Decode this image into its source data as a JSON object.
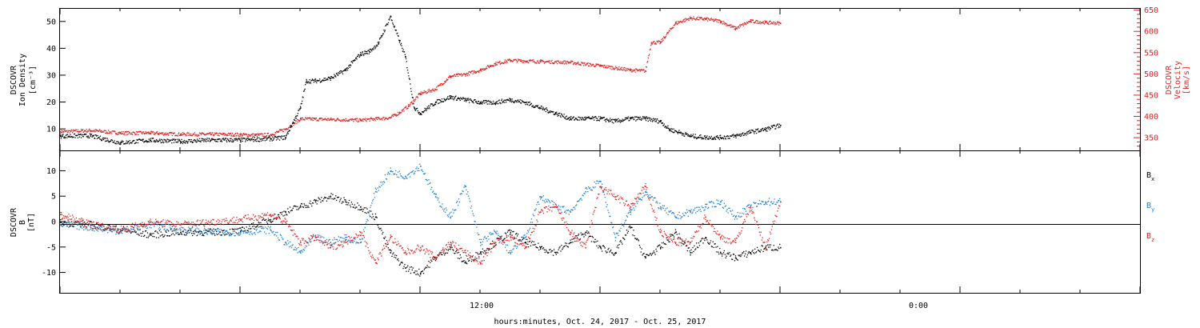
{
  "colors": {
    "black": "#000000",
    "red": "#e02020",
    "blue": "#1a7fd6"
  },
  "xaxis": {
    "title": "hours:minutes, Oct. 24, 2017 - Oct. 25, 2017",
    "range_hours": [
      0,
      36
    ],
    "major_ticks": [
      {
        "h": 12,
        "label": "12:00"
      },
      {
        "h": 24,
        "label": "0:00"
      }
    ],
    "minor_step_hours": 2
  },
  "chart_data": [
    {
      "type": "scatter",
      "panel": "top",
      "left_axis": {
        "label_lines": [
          "DSCOVR",
          "Ion Density",
          "[cm⁻³]"
        ],
        "range": [
          2,
          55
        ],
        "ticks": [
          10,
          20,
          30,
          40,
          50
        ]
      },
      "right_axis": {
        "label_lines": [
          "DSCOVR",
          "Velocity",
          "[km/s]"
        ],
        "range": [
          320,
          655
        ],
        "ticks": [
          350,
          400,
          450,
          500,
          550,
          600,
          650
        ]
      },
      "series": [
        {
          "axis": "left",
          "color": "#000000",
          "x": [
            0,
            1,
            2,
            3,
            4,
            5,
            6,
            7,
            7.5,
            8,
            8.2,
            8.5,
            9,
            9.5,
            10,
            10.3,
            10.6,
            11,
            11.3,
            11.5,
            11.8,
            12,
            12.5,
            13,
            13.5,
            14,
            14.5,
            15,
            15.5,
            16,
            16.5,
            17,
            17.5,
            18,
            18.5,
            19,
            19.5,
            20,
            20.3,
            20.6,
            21,
            21.5,
            22,
            22.5,
            23,
            23.5,
            24
          ],
          "y": [
            7.5,
            7.6,
            5,
            6,
            5.5,
            6,
            6,
            6.5,
            7,
            18,
            28,
            28,
            29,
            32,
            38,
            39,
            42,
            52,
            43,
            37,
            18,
            16,
            20,
            22,
            21,
            20,
            20,
            21,
            20,
            18,
            16,
            14,
            14,
            14,
            13,
            14,
            14,
            13,
            10,
            9,
            7.5,
            7,
            7,
            7.5,
            9,
            10,
            11.5
          ]
        },
        {
          "axis": "right",
          "color": "#e02020",
          "x": [
            0,
            1,
            2,
            3,
            4,
            5,
            6,
            6.5,
            7,
            7.5,
            8,
            9,
            10,
            11,
            11.3,
            11.6,
            12,
            12.5,
            13,
            13.5,
            14,
            14.5,
            15,
            16,
            17,
            18,
            19,
            19.5,
            19.7,
            20,
            20.5,
            21,
            21.5,
            22,
            22.5,
            23,
            23.5,
            24
          ],
          "y": [
            365,
            368,
            362,
            362,
            359,
            359,
            358,
            357,
            358,
            371,
            395,
            394,
            392,
            398,
            410,
            425,
            455,
            465,
            495,
            500,
            510,
            525,
            533,
            530,
            528,
            520,
            510,
            508,
            575,
            575,
            620,
            632,
            630,
            625,
            608,
            625,
            622,
            620
          ]
        }
      ]
    },
    {
      "type": "scatter",
      "panel": "bottom",
      "left_axis": {
        "label_lines": [
          "DSCOVR",
          "B",
          "[nT]"
        ],
        "range": [
          -14,
          14
        ],
        "ticks": [
          -10,
          -5,
          0,
          5,
          10
        ]
      },
      "zero_line": true,
      "legend": "right",
      "series": [
        {
          "name": "B_x",
          "legend_label": "B",
          "legend_sub": "x",
          "color": "#000000",
          "x": [
            0,
            1,
            2,
            3,
            4,
            5,
            6,
            7,
            7.5,
            8,
            8.5,
            9,
            9.5,
            10,
            10.5,
            11,
            11.5,
            12,
            12.5,
            13,
            13.5,
            14,
            15,
            15.5,
            16,
            16.5,
            17,
            17.5,
            18,
            18.5,
            19,
            19.5,
            20,
            20.5,
            21,
            21.5,
            22,
            22.5,
            23,
            23.5,
            24
          ],
          "y": [
            0,
            -0.5,
            -1.5,
            -2.5,
            -2,
            -2,
            -1.8,
            0.5,
            2,
            3,
            4,
            5,
            4,
            3,
            1,
            -6,
            -9,
            -10,
            -7,
            -5,
            -8,
            -6,
            -2,
            -4,
            -5,
            -6,
            -4,
            -2,
            -5,
            -6,
            -1,
            -7,
            -5,
            -2,
            -6,
            -3,
            -6,
            -7,
            -6,
            -5,
            -5
          ]
        },
        {
          "name": "B_y",
          "legend_label": "B",
          "legend_sub": "y",
          "color": "#1a7fd6",
          "x": [
            0,
            1,
            2,
            3,
            4,
            5,
            6,
            7,
            7.5,
            8,
            8.5,
            9,
            9.5,
            10,
            10.5,
            11,
            11.5,
            12,
            12.5,
            13,
            13.5,
            14,
            14.5,
            15,
            15.5,
            16,
            16.5,
            17,
            17.5,
            18,
            18.5,
            19,
            19.5,
            20,
            20.5,
            21,
            21.5,
            22,
            22.5,
            23,
            23.5,
            24
          ],
          "y": [
            -0.5,
            -1,
            -1.8,
            -0.5,
            -1.5,
            -2,
            -2,
            -1.5,
            -4,
            -6,
            -3,
            -4,
            -3,
            -4,
            6,
            10,
            9,
            11,
            5,
            1,
            7,
            -4,
            -2,
            -6,
            -3,
            5,
            3,
            2,
            6,
            8,
            -3,
            2,
            6,
            3,
            1,
            2,
            3,
            4,
            1,
            3,
            4,
            4
          ]
        },
        {
          "name": "B_z",
          "legend_label": "B",
          "legend_sub": "z",
          "color": "#e02020",
          "x": [
            0,
            1,
            2,
            3,
            4,
            5,
            6,
            7,
            7.5,
            8,
            8.5,
            9,
            9.5,
            10,
            10.5,
            11,
            11.5,
            12,
            12.5,
            13,
            13.5,
            14,
            14.5,
            15,
            15.5,
            16,
            16.5,
            17,
            17.5,
            18,
            18.5,
            19,
            19.5,
            20,
            20.5,
            21,
            21.5,
            22,
            22.5,
            23,
            23.5,
            24
          ],
          "y": [
            1.5,
            -0.5,
            -1.5,
            0,
            -0.5,
            0,
            0.5,
            1.5,
            0,
            -4,
            -3,
            -5,
            -4,
            -2,
            -8,
            -3,
            -6,
            -5,
            -7,
            -4,
            -6,
            -8,
            -4,
            -3,
            -5,
            2,
            3,
            -2,
            -5,
            7,
            5,
            3,
            7,
            -2,
            -4,
            -4,
            1,
            -3,
            -4,
            3,
            -5,
            4
          ]
        }
      ]
    }
  ]
}
